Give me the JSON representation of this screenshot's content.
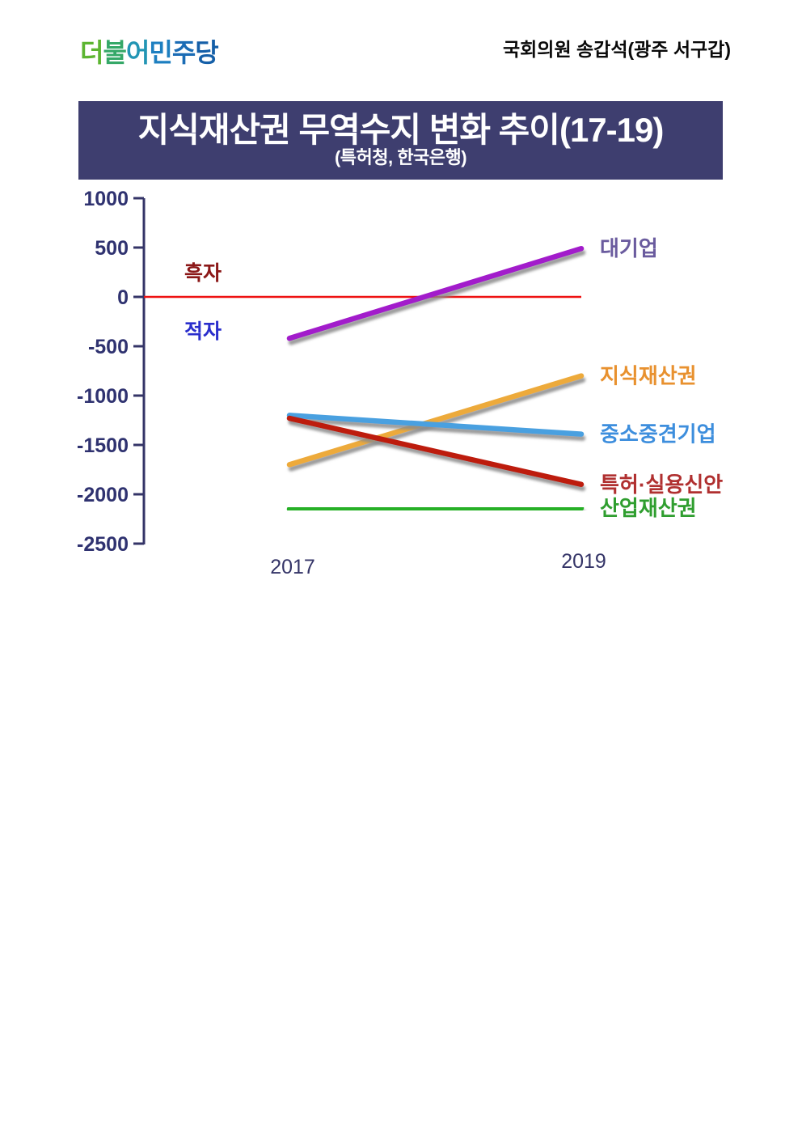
{
  "header": {
    "logo_text": "더불어민주당",
    "logo_char_colors": [
      "#5cb531",
      "#35a868",
      "#2295b4",
      "#1d7fc0",
      "#1b6cb5",
      "#155fa8"
    ],
    "member_info": "국회의원 송갑석(광주 서구갑)"
  },
  "title_banner": {
    "title": "지식재산권 무역수지 변화 추이(17-19)",
    "subtitle": "(특허청, 한국은행)",
    "bg_color": "#3e3e6f",
    "text_color": "#ffffff"
  },
  "chart_data": {
    "type": "line",
    "x": [
      2017,
      2019
    ],
    "x_tick_labels": [
      "2017",
      "2019"
    ],
    "y_ticks": [
      1000,
      500,
      0,
      -500,
      -1000,
      -1500,
      -2000,
      -2500
    ],
    "ylim": [
      -2500,
      1000
    ],
    "grid": false,
    "axis_color": "#343467",
    "tick_label_color": "#2f3270",
    "legend_position": "right-of-line-ends",
    "zero_line": {
      "value": 0,
      "color": "#ee1111",
      "above_label": "흑자",
      "above_label_color": "#8b1717",
      "below_label": "적자",
      "below_label_color": "#2a2ecc"
    },
    "series": [
      {
        "name": "대기업",
        "values": [
          -420,
          490
        ],
        "color": "#a21acb",
        "label_color": "#6a5b9e"
      },
      {
        "name": "지식재산권",
        "values": [
          -1700,
          -800
        ],
        "color": "#edaa3a",
        "label_color": "#e8912f"
      },
      {
        "name": "중소중견기업",
        "values": [
          -1200,
          -1390
        ],
        "color": "#4aa0e0",
        "label_color": "#3d8edd"
      },
      {
        "name": "특허·실용신안",
        "values": [
          -1230,
          -1900
        ],
        "color": "#bd1a10",
        "label_color": "#b03030"
      },
      {
        "name": "산업재산권",
        "values": [
          -2150,
          -2140
        ],
        "color": "#27b027",
        "label_color": "#2f9e2f"
      }
    ]
  }
}
